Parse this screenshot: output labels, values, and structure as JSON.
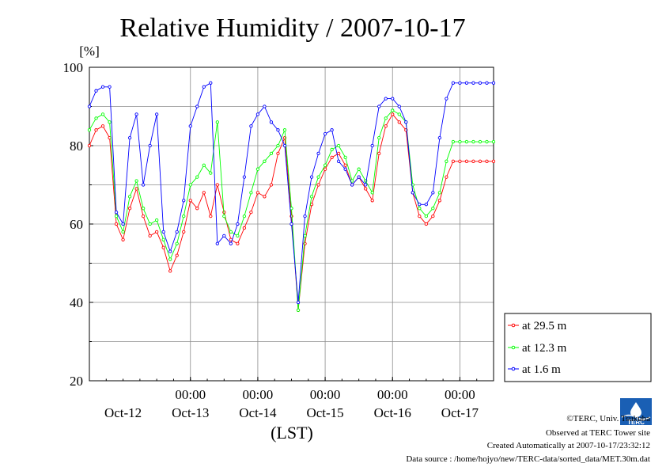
{
  "chart_data": {
    "type": "line",
    "title": "Relative Humidity / 2007-10-17",
    "ylabel": "[%]",
    "xlabel": "(LST)",
    "ylim": [
      20,
      100
    ],
    "xlim": [
      -0.5,
      5.5
    ],
    "y_ticks": [
      20,
      40,
      60,
      80,
      100
    ],
    "x_time_ticks": [
      "00:00",
      "00:00",
      "00:00",
      "00:00",
      "00:00"
    ],
    "x_date_ticks": [
      "Oct-12",
      "Oct-13",
      "Oct-14",
      "Oct-15",
      "Oct-16",
      "Oct-17"
    ],
    "grid": true,
    "legend_position": "bottom-right",
    "series": [
      {
        "name": "at 29.5 m",
        "color": "#ff0000",
        "x": [
          -0.5,
          -0.4,
          -0.3,
          -0.2,
          -0.1,
          0.0,
          0.1,
          0.2,
          0.3,
          0.4,
          0.5,
          0.6,
          0.7,
          0.8,
          0.9,
          1.0,
          1.1,
          1.2,
          1.3,
          1.4,
          1.5,
          1.6,
          1.7,
          1.8,
          1.9,
          2.0,
          2.1,
          2.2,
          2.3,
          2.4,
          2.5,
          2.6,
          2.7,
          2.8,
          2.9,
          3.0,
          3.1,
          3.2,
          3.3,
          3.4,
          3.5,
          3.6,
          3.7,
          3.8,
          3.9,
          4.0,
          4.1,
          4.2,
          4.3,
          4.4,
          4.5,
          4.6,
          4.7,
          4.8,
          4.9,
          5.0,
          5.1,
          5.2,
          5.3,
          5.4,
          5.5
        ],
        "values": [
          80,
          84,
          85,
          82,
          60,
          56,
          64,
          69,
          62,
          57,
          58,
          54,
          48,
          52,
          58,
          66,
          64,
          68,
          62,
          70,
          63,
          56,
          55,
          59,
          63,
          68,
          67,
          70,
          78,
          82,
          62,
          38,
          55,
          65,
          70,
          74,
          77,
          78,
          75,
          70,
          72,
          69,
          66,
          78,
          85,
          88,
          86,
          84,
          68,
          62,
          60,
          62,
          66,
          72,
          76,
          76,
          76,
          76,
          76,
          76,
          76
        ]
      },
      {
        "name": "at 12.3 m",
        "color": "#00ff00",
        "x": [
          -0.5,
          -0.4,
          -0.3,
          -0.2,
          -0.1,
          0.0,
          0.1,
          0.2,
          0.3,
          0.4,
          0.5,
          0.6,
          0.7,
          0.8,
          0.9,
          1.0,
          1.1,
          1.2,
          1.3,
          1.4,
          1.5,
          1.6,
          1.7,
          1.8,
          1.9,
          2.0,
          2.1,
          2.2,
          2.3,
          2.4,
          2.5,
          2.6,
          2.7,
          2.8,
          2.9,
          3.0,
          3.1,
          3.2,
          3.3,
          3.4,
          3.5,
          3.6,
          3.7,
          3.8,
          3.9,
          4.0,
          4.1,
          4.2,
          4.3,
          4.4,
          4.5,
          4.6,
          4.7,
          4.8,
          4.9,
          5.0,
          5.1,
          5.2,
          5.3,
          5.4,
          5.5
        ],
        "values": [
          84,
          87,
          88,
          86,
          62,
          58,
          67,
          71,
          64,
          60,
          61,
          56,
          51,
          55,
          62,
          70,
          72,
          75,
          73,
          86,
          62,
          58,
          57,
          62,
          68,
          74,
          76,
          78,
          80,
          84,
          64,
          38,
          57,
          67,
          72,
          75,
          79,
          80,
          77,
          71,
          74,
          71,
          68,
          82,
          87,
          89,
          88,
          86,
          70,
          64,
          62,
          64,
          68,
          76,
          81,
          81,
          81,
          81,
          81,
          81,
          81
        ]
      },
      {
        "name": "at 1.6 m",
        "color": "#0000ff",
        "x": [
          -0.5,
          -0.4,
          -0.3,
          -0.2,
          -0.1,
          0.0,
          0.1,
          0.2,
          0.3,
          0.4,
          0.5,
          0.6,
          0.7,
          0.8,
          0.9,
          1.0,
          1.1,
          1.2,
          1.3,
          1.4,
          1.5,
          1.6,
          1.7,
          1.8,
          1.9,
          2.0,
          2.1,
          2.2,
          2.3,
          2.4,
          2.5,
          2.6,
          2.7,
          2.8,
          2.9,
          3.0,
          3.1,
          3.2,
          3.3,
          3.4,
          3.5,
          3.6,
          3.7,
          3.8,
          3.9,
          4.0,
          4.1,
          4.2,
          4.3,
          4.4,
          4.5,
          4.6,
          4.7,
          4.8,
          4.9,
          5.0,
          5.1,
          5.2,
          5.3,
          5.4,
          5.5
        ],
        "values": [
          90,
          94,
          95,
          95,
          63,
          60,
          82,
          88,
          70,
          80,
          88,
          58,
          53,
          58,
          66,
          85,
          90,
          95,
          96,
          55,
          57,
          55,
          60,
          72,
          85,
          88,
          90,
          86,
          84,
          80,
          60,
          40,
          62,
          72,
          78,
          83,
          84,
          76,
          74,
          70,
          72,
          70,
          80,
          90,
          92,
          92,
          90,
          86,
          68,
          65,
          65,
          68,
          82,
          92,
          96,
          96,
          96,
          96,
          96,
          96,
          96
        ]
      }
    ]
  },
  "footer": {
    "copyright": "©TERC, Univ. Tsukuba",
    "observed": "Observed at TERC Tower site",
    "created": "Created Automatically at 2007-10-17/23:32:12",
    "source": "Data source : /home/hojyo/new/TERC-data/sorted_data/MET.30m.dat"
  },
  "logo": {
    "text": "TERC",
    "color": "#1a5fb4"
  }
}
